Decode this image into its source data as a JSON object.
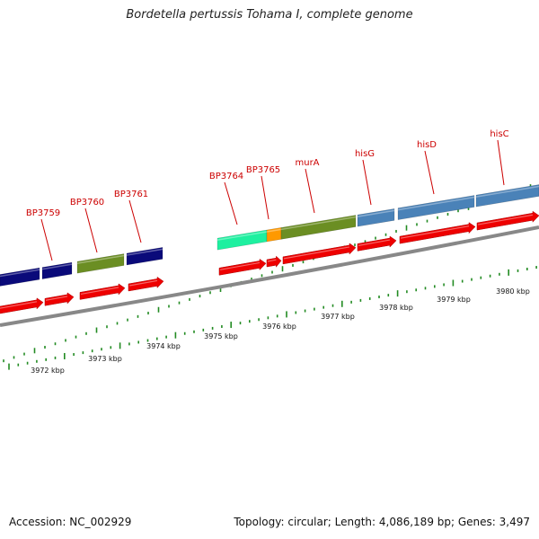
{
  "title": "Bordetella pertussis Tohama I, complete genome",
  "footer": {
    "accession": "Accession: NC_002929",
    "stats": "Topology: circular; Length: 4,086,189 bp; Genes: 3,497"
  },
  "colors": {
    "gene_arrow": "#ee0000",
    "gene_label": "#cc0000",
    "navy": "#0a0a7a",
    "olive": "#6b8e23",
    "spring": "#1ef0a0",
    "orange": "#ff9900",
    "steel": "#4a82b8",
    "tick": "#228b22",
    "backbone": "#888888"
  },
  "gene_labels": [
    "BP3759",
    "BP3760",
    "BP3761",
    "BP3764",
    "BP3765",
    "murA",
    "hisG",
    "hisD",
    "hisC"
  ],
  "kbp_labels": [
    "3972 kbp",
    "3973 kbp",
    "3974 kbp",
    "3975 kbp",
    "3976 kbp",
    "3977 kbp",
    "3978 kbp",
    "3979 kbp",
    "3980 kbp"
  ]
}
